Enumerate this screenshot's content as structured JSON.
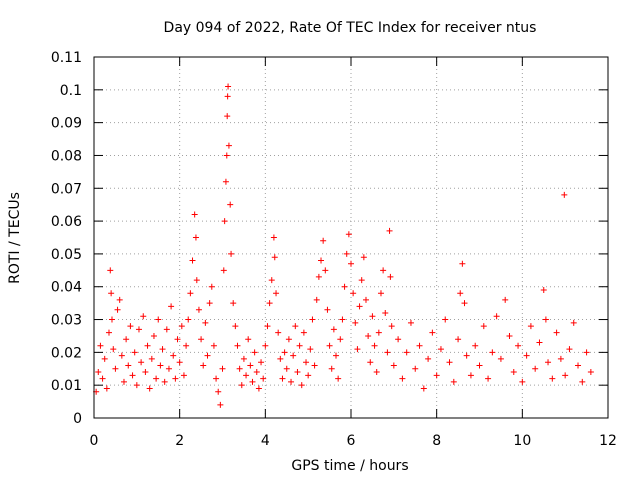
{
  "chart_data": {
    "type": "scatter",
    "title": "Day 094 of 2022, Rate Of TEC Index for receiver ntus",
    "xlabel": "GPS time / hours",
    "ylabel": "ROTI / TECUs",
    "xlim": [
      0,
      12
    ],
    "ylim": [
      0,
      0.11
    ],
    "xticks": [
      0,
      2,
      4,
      6,
      8,
      10,
      12
    ],
    "xtick_labels": [
      "0",
      "2",
      "4",
      "6",
      "8",
      "10",
      "12"
    ],
    "yticks": [
      0,
      0.01,
      0.02,
      0.03,
      0.04,
      0.05,
      0.06,
      0.07,
      0.08,
      0.09,
      0.1,
      0.11
    ],
    "ytick_labels": [
      "0",
      "0.01",
      "0.02",
      "0.03",
      "0.04",
      "0.05",
      "0.06",
      "0.07",
      "0.08",
      "0.09",
      "0.1",
      "0.11"
    ],
    "grid": true,
    "marker": "plus",
    "marker_color": "#ff0000",
    "series": [
      {
        "name": "ROTI",
        "points": [
          [
            0.05,
            0.008
          ],
          [
            0.1,
            0.014
          ],
          [
            0.15,
            0.022
          ],
          [
            0.2,
            0.012
          ],
          [
            0.25,
            0.018
          ],
          [
            0.3,
            0.009
          ],
          [
            0.35,
            0.026
          ],
          [
            0.38,
            0.045
          ],
          [
            0.4,
            0.038
          ],
          [
            0.42,
            0.03
          ],
          [
            0.45,
            0.021
          ],
          [
            0.5,
            0.015
          ],
          [
            0.55,
            0.033
          ],
          [
            0.6,
            0.036
          ],
          [
            0.65,
            0.019
          ],
          [
            0.7,
            0.011
          ],
          [
            0.75,
            0.024
          ],
          [
            0.8,
            0.016
          ],
          [
            0.85,
            0.028
          ],
          [
            0.9,
            0.013
          ],
          [
            0.95,
            0.02
          ],
          [
            1.0,
            0.01
          ],
          [
            1.05,
            0.027
          ],
          [
            1.1,
            0.017
          ],
          [
            1.15,
            0.031
          ],
          [
            1.2,
            0.014
          ],
          [
            1.25,
            0.022
          ],
          [
            1.3,
            0.009
          ],
          [
            1.35,
            0.018
          ],
          [
            1.4,
            0.025
          ],
          [
            1.45,
            0.012
          ],
          [
            1.5,
            0.03
          ],
          [
            1.55,
            0.016
          ],
          [
            1.6,
            0.021
          ],
          [
            1.65,
            0.011
          ],
          [
            1.7,
            0.027
          ],
          [
            1.75,
            0.015
          ],
          [
            1.8,
            0.034
          ],
          [
            1.85,
            0.019
          ],
          [
            1.9,
            0.012
          ],
          [
            1.95,
            0.024
          ],
          [
            2.0,
            0.017
          ],
          [
            2.05,
            0.028
          ],
          [
            2.1,
            0.013
          ],
          [
            2.15,
            0.022
          ],
          [
            2.2,
            0.03
          ],
          [
            2.25,
            0.038
          ],
          [
            2.3,
            0.048
          ],
          [
            2.35,
            0.062
          ],
          [
            2.38,
            0.055
          ],
          [
            2.4,
            0.042
          ],
          [
            2.45,
            0.033
          ],
          [
            2.5,
            0.024
          ],
          [
            2.55,
            0.016
          ],
          [
            2.6,
            0.029
          ],
          [
            2.65,
            0.019
          ],
          [
            2.7,
            0.035
          ],
          [
            2.75,
            0.04
          ],
          [
            2.8,
            0.022
          ],
          [
            2.85,
            0.012
          ],
          [
            2.9,
            0.008
          ],
          [
            2.95,
            0.004
          ],
          [
            3.0,
            0.015
          ],
          [
            3.03,
            0.045
          ],
          [
            3.05,
            0.06
          ],
          [
            3.08,
            0.072
          ],
          [
            3.1,
            0.08
          ],
          [
            3.11,
            0.092
          ],
          [
            3.12,
            0.098
          ],
          [
            3.13,
            0.101
          ],
          [
            3.15,
            0.083
          ],
          [
            3.18,
            0.065
          ],
          [
            3.2,
            0.05
          ],
          [
            3.25,
            0.035
          ],
          [
            3.3,
            0.028
          ],
          [
            3.35,
            0.022
          ],
          [
            3.4,
            0.015
          ],
          [
            3.45,
            0.01
          ],
          [
            3.5,
            0.018
          ],
          [
            3.55,
            0.013
          ],
          [
            3.6,
            0.024
          ],
          [
            3.65,
            0.016
          ],
          [
            3.7,
            0.011
          ],
          [
            3.75,
            0.02
          ],
          [
            3.8,
            0.014
          ],
          [
            3.85,
            0.009
          ],
          [
            3.9,
            0.017
          ],
          [
            3.95,
            0.012
          ],
          [
            4.0,
            0.022
          ],
          [
            4.05,
            0.028
          ],
          [
            4.1,
            0.035
          ],
          [
            4.15,
            0.042
          ],
          [
            4.2,
            0.055
          ],
          [
            4.22,
            0.049
          ],
          [
            4.25,
            0.038
          ],
          [
            4.3,
            0.026
          ],
          [
            4.35,
            0.018
          ],
          [
            4.4,
            0.012
          ],
          [
            4.45,
            0.02
          ],
          [
            4.5,
            0.015
          ],
          [
            4.55,
            0.024
          ],
          [
            4.6,
            0.011
          ],
          [
            4.65,
            0.019
          ],
          [
            4.7,
            0.028
          ],
          [
            4.75,
            0.014
          ],
          [
            4.8,
            0.022
          ],
          [
            4.85,
            0.01
          ],
          [
            4.9,
            0.026
          ],
          [
            4.95,
            0.017
          ],
          [
            5.0,
            0.013
          ],
          [
            5.05,
            0.021
          ],
          [
            5.1,
            0.03
          ],
          [
            5.15,
            0.016
          ],
          [
            5.2,
            0.036
          ],
          [
            5.25,
            0.043
          ],
          [
            5.3,
            0.048
          ],
          [
            5.35,
            0.054
          ],
          [
            5.4,
            0.045
          ],
          [
            5.45,
            0.033
          ],
          [
            5.5,
            0.022
          ],
          [
            5.55,
            0.015
          ],
          [
            5.6,
            0.027
          ],
          [
            5.65,
            0.019
          ],
          [
            5.7,
            0.012
          ],
          [
            5.75,
            0.024
          ],
          [
            5.8,
            0.03
          ],
          [
            5.85,
            0.04
          ],
          [
            5.9,
            0.05
          ],
          [
            5.95,
            0.056
          ],
          [
            6.0,
            0.047
          ],
          [
            6.05,
            0.038
          ],
          [
            6.1,
            0.029
          ],
          [
            6.15,
            0.021
          ],
          [
            6.2,
            0.034
          ],
          [
            6.25,
            0.042
          ],
          [
            6.3,
            0.049
          ],
          [
            6.35,
            0.036
          ],
          [
            6.4,
            0.025
          ],
          [
            6.45,
            0.017
          ],
          [
            6.5,
            0.031
          ],
          [
            6.55,
            0.022
          ],
          [
            6.6,
            0.014
          ],
          [
            6.65,
            0.026
          ],
          [
            6.7,
            0.038
          ],
          [
            6.75,
            0.045
          ],
          [
            6.8,
            0.032
          ],
          [
            6.85,
            0.02
          ],
          [
            6.9,
            0.057
          ],
          [
            6.92,
            0.043
          ],
          [
            6.95,
            0.028
          ],
          [
            7.0,
            0.016
          ],
          [
            7.1,
            0.024
          ],
          [
            7.2,
            0.012
          ],
          [
            7.3,
            0.02
          ],
          [
            7.4,
            0.029
          ],
          [
            7.5,
            0.015
          ],
          [
            7.6,
            0.022
          ],
          [
            7.7,
            0.009
          ],
          [
            7.8,
            0.018
          ],
          [
            7.9,
            0.026
          ],
          [
            8.0,
            0.013
          ],
          [
            8.1,
            0.021
          ],
          [
            8.2,
            0.03
          ],
          [
            8.3,
            0.017
          ],
          [
            8.4,
            0.011
          ],
          [
            8.5,
            0.024
          ],
          [
            8.55,
            0.038
          ],
          [
            8.6,
            0.047
          ],
          [
            8.65,
            0.035
          ],
          [
            8.7,
            0.019
          ],
          [
            8.8,
            0.013
          ],
          [
            8.9,
            0.022
          ],
          [
            9.0,
            0.016
          ],
          [
            9.1,
            0.028
          ],
          [
            9.2,
            0.012
          ],
          [
            9.3,
            0.02
          ],
          [
            9.4,
            0.031
          ],
          [
            9.5,
            0.018
          ],
          [
            9.6,
            0.036
          ],
          [
            9.7,
            0.025
          ],
          [
            9.8,
            0.014
          ],
          [
            9.9,
            0.022
          ],
          [
            10.0,
            0.011
          ],
          [
            10.1,
            0.019
          ],
          [
            10.2,
            0.028
          ],
          [
            10.3,
            0.015
          ],
          [
            10.4,
            0.023
          ],
          [
            10.5,
            0.039
          ],
          [
            10.55,
            0.03
          ],
          [
            10.6,
            0.017
          ],
          [
            10.7,
            0.012
          ],
          [
            10.8,
            0.026
          ],
          [
            10.9,
            0.018
          ],
          [
            10.98,
            0.068
          ],
          [
            11.0,
            0.013
          ],
          [
            11.1,
            0.021
          ],
          [
            11.2,
            0.029
          ],
          [
            11.3,
            0.016
          ],
          [
            11.4,
            0.011
          ],
          [
            11.5,
            0.02
          ],
          [
            11.6,
            0.014
          ]
        ]
      }
    ]
  }
}
